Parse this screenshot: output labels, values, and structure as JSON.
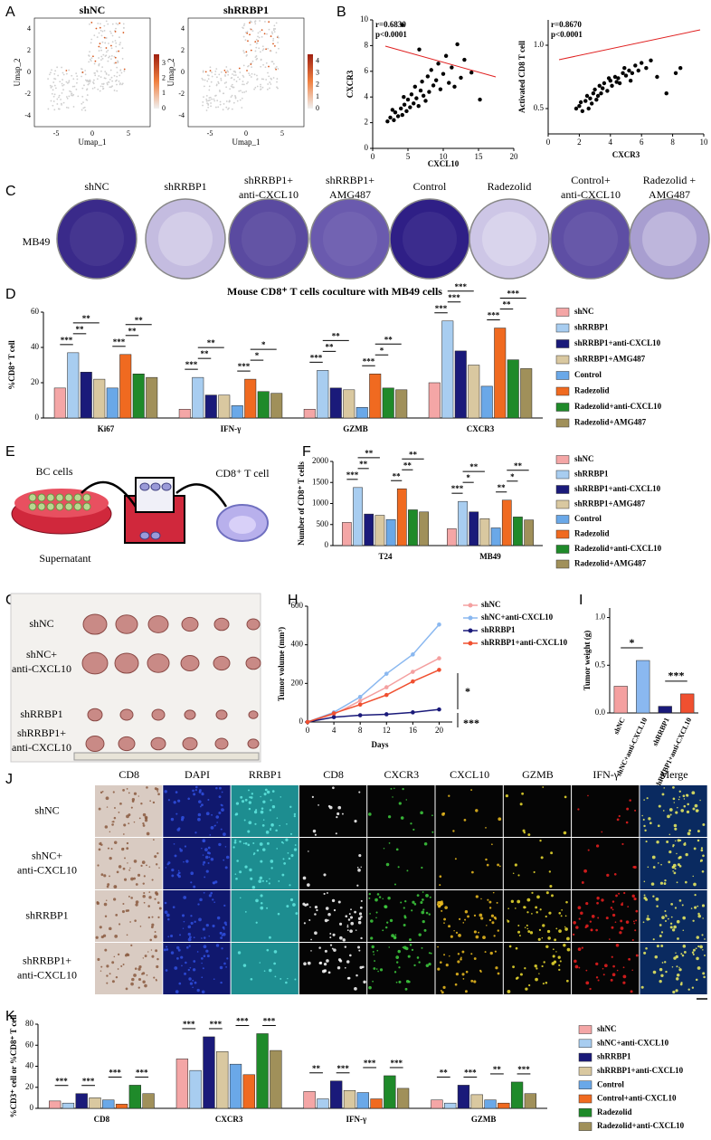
{
  "panel_letters": [
    "A",
    "B",
    "C",
    "D",
    "E",
    "F",
    "G",
    "H",
    "I",
    "J",
    "K"
  ],
  "umap": [
    {
      "title": "shNC",
      "xlabel": "Umap_1",
      "ylabel": "Umap_2",
      "xlim": [
        -8,
        8
      ],
      "ylim": [
        -5,
        5
      ],
      "xticks": [
        -5,
        0,
        5
      ],
      "yticks": [
        -4,
        -2,
        0,
        2,
        4
      ],
      "colorbar_lim": [
        0,
        3.6
      ],
      "colorbar_ticks": [
        0,
        1,
        2,
        3
      ]
    },
    {
      "title": "shRRBP1",
      "xlabel": "Umap_1",
      "ylabel": "Umap_2",
      "xlim": [
        -8,
        8
      ],
      "ylim": [
        -5,
        5
      ],
      "xticks": [
        -5,
        0,
        5
      ],
      "yticks": [
        -4,
        -2,
        0,
        2,
        4
      ],
      "colorbar_lim": [
        0,
        4.6
      ],
      "colorbar_ticks": [
        0,
        1,
        2,
        3,
        4
      ]
    }
  ],
  "chart_data": [
    {
      "type": "scatter",
      "xlabel": "CXCL10",
      "ylabel": "CXCR3",
      "annotations": [
        "r=0.6830",
        "p<0.0001"
      ],
      "color": "#000000",
      "fit_color": "#e02020",
      "x": [
        2.1,
        2.5,
        3,
        3.2,
        3.6,
        4,
        4.2,
        4.5,
        4.8,
        5,
        5.3,
        5.5,
        5.8,
        6,
        6.2,
        6.5,
        6.8,
        7,
        7.2,
        7.5,
        7.8,
        8,
        8.3,
        8.6,
        9,
        9.3,
        9.6,
        10,
        10.4,
        10.8,
        11.2,
        11.6,
        12,
        12.5,
        13,
        14,
        15.2,
        2.8,
        4.4,
        6.6,
        4.2
      ],
      "values": [
        2.1,
        2.4,
        2.2,
        2.8,
        2.5,
        3.1,
        2.6,
        3.4,
        2.9,
        3.8,
        3.2,
        4.2,
        3.5,
        4.8,
        3.9,
        3.3,
        4.5,
        5.2,
        4.1,
        3.7,
        5.6,
        4.4,
        6.1,
        4.9,
        5.3,
        6.6,
        4.6,
        5.8,
        7.2,
        5.1,
        6.3,
        4.8,
        8.1,
        5.5,
        6.9,
        5.9,
        3.8,
        3.0,
        4.0,
        7.7,
        9.6
      ],
      "xlim": [
        0,
        20
      ],
      "xticks": [
        0,
        5,
        10,
        15,
        20
      ],
      "ylim": [
        0,
        10
      ],
      "yticks": [
        0,
        2,
        4,
        6,
        8,
        10
      ]
    },
    {
      "type": "scatter",
      "xlabel": "CXCR3",
      "ylabel": "Activated CD8 T cell",
      "annotations": [
        "r=0.8670",
        "p<0.0001"
      ],
      "color": "#000000",
      "fit_color": "#e02020",
      "x": [
        1.8,
        2,
        2.2,
        2.4,
        2.5,
        2.7,
        2.9,
        3,
        3.2,
        3.3,
        3.5,
        3.6,
        3.8,
        4,
        4.1,
        4.3,
        4.5,
        4.6,
        4.8,
        5,
        5.2,
        5.4,
        5.6,
        5.8,
        6,
        6.3,
        6.6,
        7,
        8.2,
        8.5,
        2.1,
        2.8,
        3.4,
        3.9,
        4.4,
        4.9,
        5.3,
        3.1,
        2.6,
        7.6
      ],
      "values": [
        0.5,
        0.52,
        0.48,
        0.56,
        0.6,
        0.58,
        0.62,
        0.65,
        0.6,
        0.68,
        0.66,
        0.7,
        0.64,
        0.72,
        0.68,
        0.75,
        0.74,
        0.7,
        0.78,
        0.76,
        0.8,
        0.78,
        0.84,
        0.8,
        0.86,
        0.82,
        0.88,
        0.75,
        0.78,
        0.82,
        0.55,
        0.54,
        0.62,
        0.74,
        0.71,
        0.82,
        0.72,
        0.57,
        0.5,
        0.62
      ],
      "xlim": [
        0,
        10
      ],
      "xticks": [
        0,
        2,
        4,
        6,
        8,
        10
      ],
      "ylim": [
        0.3,
        1.2
      ],
      "yticks": [
        0.5,
        {
          "value": 1,
          "label": "1.0"
        }
      ]
    },
    {
      "type": "bar",
      "title": "Mouse CD8⁺ T cells coculture with MB49 cells",
      "ylabel": "%CD8⁺ T cell",
      "categories": [
        "Ki67",
        "IFN-γ",
        "GZMB",
        "CXCR3"
      ],
      "ylim": [
        0,
        60
      ],
      "yticks": [
        0,
        20,
        40,
        60
      ],
      "series": [
        {
          "name": "shNC",
          "color": "#f4a6a6",
          "values": [
            17,
            5,
            5,
            20
          ]
        },
        {
          "name": "shRRBP1",
          "color": "#a8cdf0",
          "values": [
            37,
            23,
            27,
            55
          ]
        },
        {
          "name": "shRRBP1+anti-CXCL10",
          "color": "#1a1a7a",
          "values": [
            26,
            13,
            17,
            38
          ]
        },
        {
          "name": "shRRBP1+AMG487",
          "color": "#d9c8a0",
          "values": [
            22,
            13,
            16,
            30
          ]
        },
        {
          "name": "Control",
          "color": "#6aa8e8",
          "values": [
            17,
            7,
            6,
            18
          ]
        },
        {
          "name": "Radezolid",
          "color": "#f06a20",
          "values": [
            36,
            22,
            25,
            51
          ]
        },
        {
          "name": "Radezolid+anti-CXCL10",
          "color": "#1f8a2a",
          "values": [
            25,
            15,
            17,
            33
          ]
        },
        {
          "name": "Radezolid+AMG487",
          "color": "#a0905a",
          "values": [
            23,
            14,
            16,
            28
          ]
        }
      ],
      "significance": [
        [
          "***",
          "**",
          "**",
          "***",
          "**",
          "**"
        ],
        [
          "***",
          "**",
          "**",
          "***",
          "*",
          "*"
        ],
        [
          "***",
          "**",
          "**",
          "***",
          "*",
          "**"
        ],
        [
          "***",
          "***",
          "***",
          "***",
          "**",
          "***"
        ]
      ]
    },
    {
      "type": "bar",
      "ylabel": "Number of CD8⁺ T cells",
      "categories": [
        "T24",
        "MB49"
      ],
      "ylim": [
        0,
        2000
      ],
      "yticks": [
        0,
        500,
        1000,
        1500,
        2000
      ],
      "series": [
        {
          "name": "shNC",
          "color": "#f4a6a6",
          "values": [
            550,
            400
          ]
        },
        {
          "name": "shRRBP1",
          "color": "#a8cdf0",
          "values": [
            1380,
            1050
          ]
        },
        {
          "name": "shRRBP1+anti-CXCL10",
          "color": "#1a1a7a",
          "values": [
            750,
            800
          ]
        },
        {
          "name": "shRRBP1+AMG487",
          "color": "#d9c8a0",
          "values": [
            720,
            640
          ]
        },
        {
          "name": "Control",
          "color": "#6aa8e8",
          "values": [
            620,
            420
          ]
        },
        {
          "name": "Radezolid",
          "color": "#f06a20",
          "values": [
            1350,
            1080
          ]
        },
        {
          "name": "Radezolid+anti-CXCL10",
          "color": "#1f8a2a",
          "values": [
            850,
            680
          ]
        },
        {
          "name": "Radezolid+AMG487",
          "color": "#a0905a",
          "values": [
            800,
            610
          ]
        }
      ],
      "significance": [
        [
          "***",
          "**",
          "**",
          "**",
          "**",
          "**"
        ],
        [
          "***",
          "*",
          "**",
          "**",
          "*",
          "**"
        ]
      ]
    },
    {
      "type": "line",
      "xlabel": "Days",
      "ylabel": "Tumor volume (mm³)",
      "x": [
        0,
        4,
        8,
        12,
        16,
        20
      ],
      "xlim": [
        0,
        22
      ],
      "xticks": [
        0,
        4,
        8,
        12,
        16,
        20
      ],
      "ylim": [
        0,
        600
      ],
      "yticks": [
        0,
        200,
        400,
        600
      ],
      "annotations": [
        "*",
        "***"
      ],
      "series": [
        {
          "name": "shNC",
          "color": "#f4a0a0",
          "values": [
            0,
            40,
            110,
            180,
            260,
            330
          ]
        },
        {
          "name": "shNC+anti-CXCL10",
          "color": "#8ab8f0",
          "values": [
            0,
            50,
            130,
            250,
            350,
            505
          ]
        },
        {
          "name": "shRRBP1",
          "color": "#1a1a7a",
          "values": [
            0,
            25,
            35,
            40,
            50,
            65
          ]
        },
        {
          "name": "shRRBP1+anti-CXCL10",
          "color": "#f05030",
          "values": [
            0,
            45,
            90,
            140,
            210,
            270
          ]
        }
      ]
    },
    {
      "type": "bar",
      "ylabel": "Tumor weight (g)",
      "categories": [
        "shNC",
        "shNC+anti-CXCL10",
        "shRRBP1",
        "shRRBP1+anti-CXCL10"
      ],
      "values": [
        0.28,
        0.55,
        0.07,
        0.2
      ],
      "colors": [
        "#f4a0a0",
        "#8ab8f0",
        "#1a1a7a",
        "#f05030"
      ],
      "ylim": [
        0,
        1.1
      ],
      "yticks": [
        {
          "value": 0,
          "label": "0.0"
        },
        0.5,
        {
          "value": 1,
          "label": "1.0"
        }
      ],
      "significance": [
        "*",
        "***"
      ]
    },
    {
      "type": "bar",
      "ylabel": "%CD3⁺ cell or %CD8⁺ T cell",
      "categories": [
        "CD8",
        "CXCR3",
        "IFN-γ",
        "GZMB"
      ],
      "ylim": [
        0,
        80
      ],
      "yticks": [
        0,
        20,
        40,
        60,
        80
      ],
      "series": [
        {
          "name": "shNC",
          "color": "#f4a6a6",
          "values": [
            7,
            47,
            16,
            8
          ]
        },
        {
          "name": "shNC+anti-CXCL10",
          "color": "#a8cdf0",
          "values": [
            5,
            36,
            9,
            5
          ]
        },
        {
          "name": "shRRBP1",
          "color": "#1a1a7a",
          "values": [
            14,
            68,
            26,
            22
          ]
        },
        {
          "name": "shRRBP1+anti-CXCL10",
          "color": "#d9c8a0",
          "values": [
            10,
            54,
            17,
            13
          ]
        },
        {
          "name": "Control",
          "color": "#6aa8e8",
          "values": [
            8,
            42,
            15,
            8
          ]
        },
        {
          "name": "Control+anti-CXCL10",
          "color": "#f06a20",
          "values": [
            4,
            32,
            9,
            5
          ]
        },
        {
          "name": "Radezolid",
          "color": "#1f8a2a",
          "values": [
            22,
            71,
            31,
            25
          ]
        },
        {
          "name": "Radezolid+anti-CXCL10",
          "color": "#a0905a",
          "values": [
            14,
            55,
            19,
            14
          ]
        }
      ],
      "significance": [
        [
          "***",
          "***",
          "***",
          "***"
        ],
        [
          "***",
          "***",
          "***",
          "***"
        ],
        [
          "**",
          "***",
          "***",
          "***"
        ],
        [
          "**",
          "***",
          "**",
          "***"
        ]
      ]
    }
  ],
  "plates": {
    "labels": [
      [
        "shNC"
      ],
      [
        "shRRBP1"
      ],
      [
        "shRRBP1+",
        "anti-CXCL10"
      ],
      [
        "shRRBP1+",
        "AMG487"
      ],
      [
        "Control"
      ],
      [
        "Radezolid"
      ],
      [
        "Control+",
        "anti-CXCL10"
      ],
      [
        "Radezolid +",
        "AMG487"
      ]
    ],
    "row_label": "MB49"
  },
  "schematic": {
    "labels": [
      "BC cells",
      "Supernatant",
      "CD8⁺ T cell"
    ]
  },
  "tumor_photo": {
    "row_labels": [
      [
        "shNC"
      ],
      [
        "shNC+",
        "anti-CXCL10"
      ],
      [
        "shRRBP1"
      ],
      [
        "shRRBP1+",
        "anti-CXCL10"
      ]
    ]
  },
  "staining": {
    "columns": [
      "CD8",
      "DAPI",
      "RRBP1",
      "CD8",
      "CXCR3",
      "CXCL10",
      "GZMB",
      "IFN-γ",
      "Merge"
    ],
    "row_labels": [
      [
        "shNC"
      ],
      [
        "shNC+",
        "anti-CXCL10"
      ],
      [
        "shRRBP1"
      ],
      [
        "shRRBP1+",
        "anti-CXCL10"
      ]
    ]
  }
}
